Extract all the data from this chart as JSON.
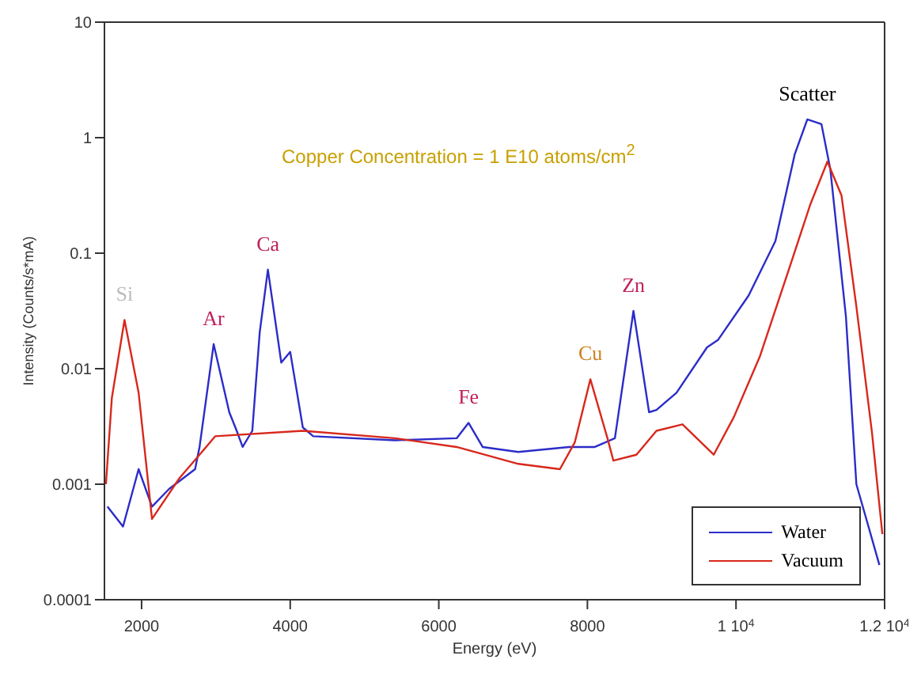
{
  "chart_data": {
    "type": "line",
    "xlabel": "Energy (eV)",
    "ylabel": "Intensity (Counts/s*mA)",
    "log": "y",
    "xlim": [
      1500,
      12000
    ],
    "xticks": [
      2000,
      4000,
      6000,
      8000,
      {
        "value": 10000,
        "label": "1 10$^{4}$"
      },
      {
        "value": 12000,
        "label": "1.2 10$^{4}$"
      }
    ],
    "ylim": [
      0.0001,
      10
    ],
    "yticks": [
      0.0001,
      0.001,
      0.01,
      0.1,
      1,
      10
    ],
    "legend": "bottom right",
    "marker": "none",
    "line_style": "solid",
    "series": [
      {
        "name": "Water",
        "color": "#2c2cc8",
        "x": [
          1540,
          1750,
          1960,
          2140,
          2370,
          2720,
          2780,
          2970,
          3180,
          3280,
          3360,
          3490,
          3590,
          3700,
          3880,
          4000,
          4170,
          4310,
          5410,
          6240,
          6400,
          6590,
          7070,
          7750,
          8100,
          8370,
          8620,
          8830,
          8930,
          9200,
          9610,
          9760,
          10170,
          10530,
          10790,
          10960,
          11150,
          11270,
          11480,
          11620,
          11770,
          11930
        ],
        "values": [
          0.00064,
          0.00043,
          0.00135,
          0.00064,
          0.00091,
          0.00135,
          0.0021,
          0.0163,
          0.0042,
          0.0029,
          0.0021,
          0.0029,
          0.0207,
          0.072,
          0.0113,
          0.014,
          0.0031,
          0.0026,
          0.0024,
          0.0025,
          0.0034,
          0.0021,
          0.0019,
          0.0021,
          0.0021,
          0.0025,
          0.0316,
          0.0042,
          0.0044,
          0.0062,
          0.0153,
          0.0178,
          0.043,
          0.127,
          0.716,
          1.44,
          1.31,
          0.53,
          0.028,
          0.001,
          0.00046,
          0.0002
        ]
      },
      {
        "name": "Vacuum",
        "color": "#d8281c",
        "x": [
          1520,
          1600,
          1770,
          1960,
          2140,
          2510,
          2780,
          2990,
          4170,
          5410,
          6240,
          7070,
          7630,
          7830,
          8040,
          8270,
          8350,
          8660,
          8930,
          9280,
          9700,
          9970,
          10320,
          10730,
          11000,
          11230,
          11420,
          11620,
          11830,
          11970
        ],
        "values": [
          0.001,
          0.0056,
          0.0264,
          0.0062,
          0.0005,
          0.00113,
          0.0018,
          0.0026,
          0.0029,
          0.0025,
          0.0021,
          0.0015,
          0.00135,
          0.0023,
          0.0081,
          0.0025,
          0.0016,
          0.0018,
          0.0029,
          0.0033,
          0.0018,
          0.0038,
          0.0127,
          0.0785,
          0.264,
          0.62,
          0.316,
          0.0346,
          0.0028,
          0.00037
        ]
      }
    ],
    "annotations": [
      "Copper Concentration = 1 E10 atoms/cm$^{2}$",
      {
        "text": "Si",
        "x": 1770,
        "y": 0.0264
      },
      {
        "text": "Ar",
        "x": 2970,
        "y": 0.0163
      },
      {
        "text": "Ca",
        "x": 3700,
        "y": 0.072
      },
      {
        "text": "Fe",
        "x": 6400,
        "y": 0.0034
      },
      {
        "text": "Cu",
        "x": 8040,
        "y": 0.0081
      },
      {
        "text": "Zn",
        "x": 8620,
        "y": 0.0316
      },
      {
        "text": "Scatter",
        "x": 10960,
        "y": 1.44
      }
    ]
  }
}
